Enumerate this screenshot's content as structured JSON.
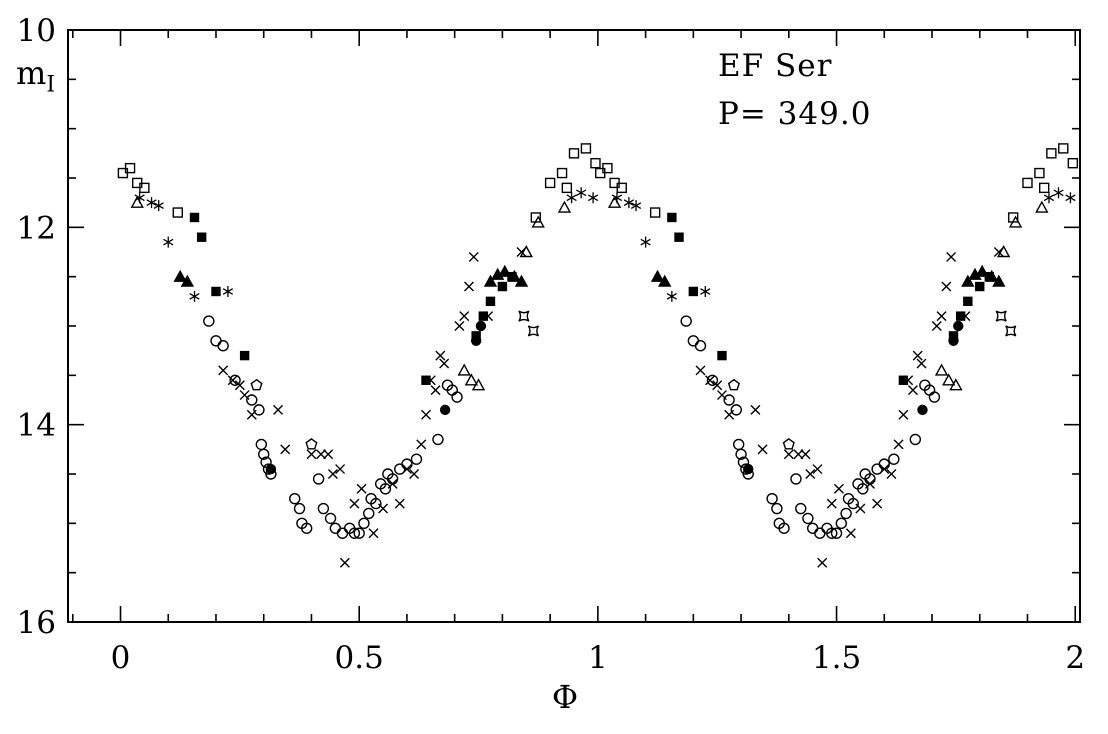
{
  "chart_data": {
    "type": "scatter",
    "annotations": [
      "EF Ser",
      "P= 349.0"
    ],
    "xlabel": "Φ",
    "ylabel_base": "m",
    "ylabel_sub": "I",
    "xlim": [
      -0.11,
      2.01
    ],
    "ylim": [
      10,
      16
    ],
    "y_inverted": true,
    "grid": false,
    "legend": "none",
    "duplicate_cycle": true,
    "xticks": {
      "major_values": [
        0,
        0.5,
        1,
        1.5,
        2
      ],
      "major_labels": [
        "0",
        "0.5",
        "1",
        "1.5",
        "2"
      ],
      "minor_step": 0.1
    },
    "yticks": {
      "major_values": [
        10,
        12,
        14,
        16
      ],
      "major_labels": [
        "10",
        "12",
        "14",
        "16"
      ],
      "minor_step": 0.5
    },
    "series": [
      {
        "name": "open squares",
        "marker": "square-open",
        "points": [
          [
            0.005,
            11.45
          ],
          [
            0.02,
            11.4
          ],
          [
            0.035,
            11.55
          ],
          [
            0.05,
            11.6
          ],
          [
            0.12,
            11.85
          ],
          [
            0.87,
            11.9
          ],
          [
            0.9,
            11.55
          ],
          [
            0.925,
            11.45
          ],
          [
            0.935,
            11.6
          ],
          [
            0.95,
            11.25
          ],
          [
            0.975,
            11.2
          ],
          [
            0.995,
            11.35
          ]
        ]
      },
      {
        "name": "filled squares",
        "marker": "square-filled",
        "points": [
          [
            0.155,
            11.9
          ],
          [
            0.17,
            12.1
          ],
          [
            0.2,
            12.65
          ],
          [
            0.26,
            13.3
          ],
          [
            0.64,
            13.55
          ],
          [
            0.745,
            13.1
          ],
          [
            0.76,
            12.9
          ],
          [
            0.775,
            12.75
          ],
          [
            0.8,
            12.6
          ],
          [
            0.82,
            12.5
          ]
        ]
      },
      {
        "name": "filled triangles",
        "marker": "triangle-filled",
        "points": [
          [
            0.125,
            12.5
          ],
          [
            0.14,
            12.55
          ],
          [
            0.775,
            12.55
          ],
          [
            0.79,
            12.48
          ],
          [
            0.805,
            12.45
          ],
          [
            0.825,
            12.5
          ],
          [
            0.84,
            12.55
          ]
        ]
      },
      {
        "name": "open triangles",
        "marker": "triangle-open",
        "points": [
          [
            0.035,
            11.75
          ],
          [
            0.72,
            13.45
          ],
          [
            0.735,
            13.55
          ],
          [
            0.75,
            13.6
          ],
          [
            0.85,
            12.25
          ],
          [
            0.875,
            11.95
          ],
          [
            0.93,
            11.8
          ]
        ]
      },
      {
        "name": "asterisks",
        "marker": "asterisk",
        "points": [
          [
            0.04,
            11.7
          ],
          [
            0.065,
            11.75
          ],
          [
            0.08,
            11.78
          ],
          [
            0.1,
            12.15
          ],
          [
            0.155,
            12.7
          ],
          [
            0.225,
            12.65
          ],
          [
            0.945,
            11.7
          ],
          [
            0.965,
            11.65
          ],
          [
            0.99,
            11.7
          ]
        ]
      },
      {
        "name": "open circles",
        "marker": "circle-open",
        "points": [
          [
            0.185,
            12.95
          ],
          [
            0.2,
            13.15
          ],
          [
            0.215,
            13.2
          ],
          [
            0.24,
            13.55
          ],
          [
            0.275,
            13.75
          ],
          [
            0.29,
            13.85
          ],
          [
            0.295,
            14.2
          ],
          [
            0.3,
            14.3
          ],
          [
            0.305,
            14.38
          ],
          [
            0.31,
            14.45
          ],
          [
            0.315,
            14.5
          ],
          [
            0.365,
            14.75
          ],
          [
            0.375,
            14.85
          ],
          [
            0.38,
            15.0
          ],
          [
            0.39,
            15.05
          ],
          [
            0.415,
            14.55
          ],
          [
            0.425,
            14.85
          ],
          [
            0.44,
            14.95
          ],
          [
            0.45,
            15.05
          ],
          [
            0.465,
            15.1
          ],
          [
            0.48,
            15.05
          ],
          [
            0.49,
            15.1
          ],
          [
            0.5,
            15.1
          ],
          [
            0.51,
            15.0
          ],
          [
            0.52,
            14.9
          ],
          [
            0.525,
            14.75
          ],
          [
            0.535,
            14.8
          ],
          [
            0.545,
            14.6
          ],
          [
            0.555,
            14.65
          ],
          [
            0.56,
            14.5
          ],
          [
            0.57,
            14.55
          ],
          [
            0.585,
            14.45
          ],
          [
            0.6,
            14.4
          ],
          [
            0.62,
            14.35
          ],
          [
            0.665,
            14.15
          ],
          [
            0.685,
            13.6
          ],
          [
            0.695,
            13.65
          ],
          [
            0.705,
            13.72
          ]
        ]
      },
      {
        "name": "filled circles",
        "marker": "circle-filled",
        "points": [
          [
            0.315,
            14.45
          ],
          [
            0.68,
            13.85
          ],
          [
            0.745,
            13.15
          ],
          [
            0.755,
            13.0
          ]
        ]
      },
      {
        "name": "crosses",
        "marker": "cross",
        "points": [
          [
            0.215,
            13.45
          ],
          [
            0.235,
            13.55
          ],
          [
            0.25,
            13.6
          ],
          [
            0.26,
            13.7
          ],
          [
            0.275,
            13.9
          ],
          [
            0.33,
            13.85
          ],
          [
            0.345,
            14.25
          ],
          [
            0.4,
            14.3
          ],
          [
            0.42,
            14.3
          ],
          [
            0.435,
            14.3
          ],
          [
            0.445,
            14.5
          ],
          [
            0.46,
            14.45
          ],
          [
            0.47,
            15.4
          ],
          [
            0.49,
            14.8
          ],
          [
            0.505,
            14.65
          ],
          [
            0.53,
            15.1
          ],
          [
            0.55,
            14.85
          ],
          [
            0.57,
            14.6
          ],
          [
            0.585,
            14.8
          ],
          [
            0.6,
            14.45
          ],
          [
            0.615,
            14.5
          ],
          [
            0.63,
            14.2
          ],
          [
            0.64,
            13.9
          ],
          [
            0.65,
            13.55
          ],
          [
            0.66,
            13.65
          ],
          [
            0.67,
            13.3
          ],
          [
            0.678,
            13.38
          ],
          [
            0.71,
            13.0
          ],
          [
            0.72,
            12.9
          ],
          [
            0.73,
            12.6
          ],
          [
            0.74,
            12.3
          ],
          [
            0.77,
            12.9
          ],
          [
            0.84,
            12.25
          ]
        ]
      },
      {
        "name": "open pentagons",
        "marker": "pentagon-open",
        "points": [
          [
            0.285,
            13.6
          ],
          [
            0.4,
            14.2
          ]
        ]
      },
      {
        "name": "concave squares",
        "marker": "square-concave",
        "points": [
          [
            0.845,
            12.9
          ],
          [
            0.865,
            13.05
          ]
        ]
      }
    ]
  }
}
